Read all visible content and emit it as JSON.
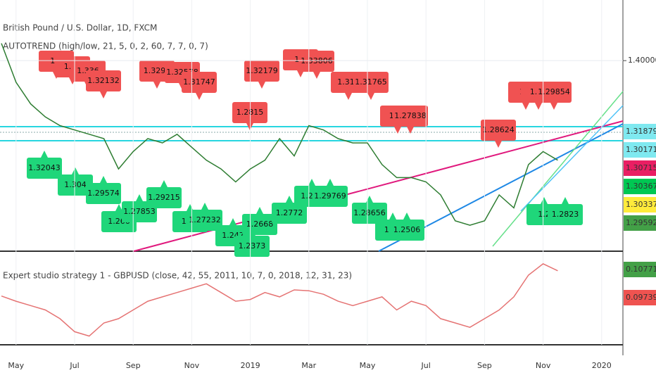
{
  "chart_data": [
    {
      "type": "line",
      "title": "British Pound / U.S. Dollar, 1D, FXCM",
      "subtitle": "AUTOTREND (high/low, 21, 5, 0, 2, 60, 7, 7, 0, 7)",
      "categories": [
        null,
        "May",
        null,
        null,
        null,
        "Jul",
        null,
        null,
        null,
        "Sep",
        null,
        null,
        null,
        "Nov",
        null,
        null,
        null,
        "2019",
        null,
        null,
        null,
        "Mar",
        null,
        null,
        null,
        "May",
        null,
        null,
        null,
        "Jul",
        null,
        null,
        null,
        "Sep",
        null,
        null,
        null,
        "Nov",
        null,
        null,
        null,
        "2020"
      ],
      "series": [
        {
          "color": "#2e7d32",
          "values": [
            1.42,
            1.375,
            1.35,
            1.335,
            1.325,
            1.32,
            1.315,
            1.31,
            1.275,
            1.295,
            1.31,
            1.305,
            1.315,
            1.3,
            1.285,
            1.275,
            1.26,
            1.275,
            1.285,
            1.31,
            1.29,
            1.325,
            1.32,
            1.31,
            1.305,
            1.305,
            1.28,
            1.265,
            1.265,
            1.26,
            1.245,
            1.215,
            1.21,
            1.215,
            1.245,
            1.23,
            1.28,
            1.295,
            1.285,
            null,
            null,
            null
          ]
        }
      ],
      "ylim": [
        1.18,
        1.47
      ],
      "yticks": [
        {
          "value": 1.4,
          "label": "1.40000"
        }
      ],
      "price_labels": [
        {
          "value": 1.31879,
          "color": "#7fe9f0"
        },
        {
          "value": 1.30171,
          "color": "#7fe9f0"
        },
        {
          "value": 1.30715,
          "color": "#e91e63"
        },
        {
          "value": 1.30367,
          "color": "#00c853"
        },
        {
          "value": 1.30337,
          "color": "#ffeb3b"
        },
        {
          "value": 1.29592,
          "color": "#43a047"
        }
      ],
      "high_labels": [
        "1.3",
        "1.33",
        "1.336",
        "1.32132",
        "1.3298",
        "1.32578",
        "1.31747",
        "1.2815",
        "1.32179",
        "1.3",
        "1.33806",
        "1.313",
        "1.31765",
        "1.27",
        "1.27838",
        "1.28624",
        "1.2",
        "1.29",
        "1.29854"
      ],
      "low_labels": [
        "1.32043",
        "1.304",
        "1.29574",
        "1.266",
        "1.27853",
        "1.29215",
        "1.26",
        "1.27232",
        "1.247",
        "1.2668",
        "1.2373",
        "1.2772",
        "1.296",
        "1.29769",
        "1.28656",
        "1.25",
        "1.2506",
        "1.2",
        "1.2823"
      ],
      "high_color": "#f05252",
      "low_color": "#1fd67a"
    },
    {
      "type": "line",
      "title": "Expert studio strategy 1 - GBPUSD (close, 42, 55, 2011, 10, 7, 0, 2018, 12, 31, 23)",
      "series": [
        {
          "color": "#e57373",
          "values": [
            0.076,
            0.07,
            0.065,
            0.06,
            0.05,
            0.035,
            0.03,
            0.045,
            0.05,
            0.06,
            0.07,
            0.075,
            0.08,
            0.085,
            0.09,
            0.08,
            0.07,
            0.072,
            0.08,
            0.075,
            0.083,
            0.082,
            0.078,
            0.07,
            0.065,
            0.07,
            0.075,
            0.06,
            0.07,
            0.065,
            0.05,
            0.045,
            0.04,
            0.05,
            0.06,
            0.075,
            0.1,
            0.113,
            0.105,
            null,
            null,
            null
          ]
        }
      ],
      "ylim": [
        0.02,
        0.125
      ],
      "price_labels": [
        {
          "value": 0.107718,
          "color": "#43a047"
        },
        {
          "value": 0.097397,
          "color": "#ef5350"
        }
      ]
    }
  ]
}
